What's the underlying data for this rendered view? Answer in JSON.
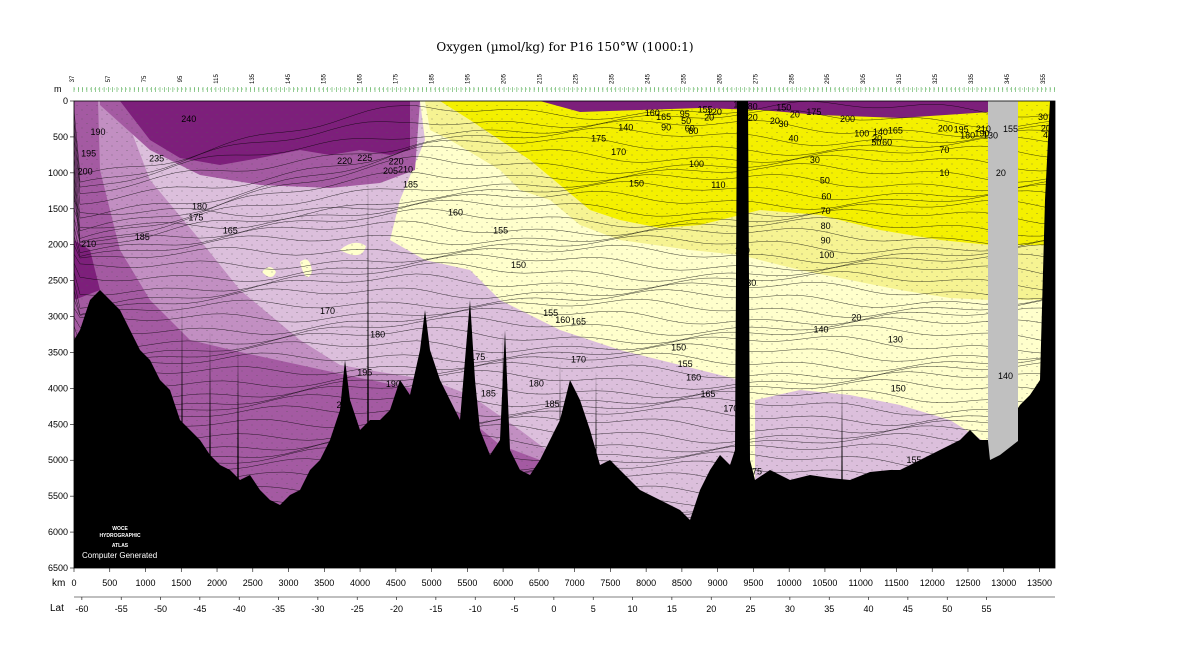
{
  "title": "Oxygen (µmol/kg) for P16 150°W (1000:1)",
  "depth_unit_label": "m",
  "distance_unit_label": "km",
  "latitude_axis_label": "Lat",
  "logo": {
    "line1": "WOCE",
    "line2": "HYDROGRAPHIC",
    "line3": "ATLAS",
    "caption": "Computer Generated"
  },
  "colors": {
    "purple_dark": "#7d1f7b",
    "purple_mid": "#a45aa2",
    "purple_light": "#c28fc2",
    "lavender": "#dcbfdc",
    "cream": "#ffffcc",
    "yellow_light": "#f6f392",
    "yellow": "#f4f000",
    "bottom": "#000000",
    "gap": "#c0c0c0"
  },
  "station_numbers": [
    "37",
    "46",
    "57",
    "65",
    "75",
    "85",
    "95",
    "105",
    "115",
    "125",
    "135",
    "140",
    "145",
    "150",
    "155",
    "160",
    "165",
    "170",
    "175",
    "180",
    "185",
    "190",
    "195",
    "200",
    "205",
    "210",
    "215",
    "220",
    "225",
    "230",
    "235",
    "240",
    "245",
    "250",
    "255",
    "260",
    "265",
    "270",
    "275",
    "280",
    "285",
    "290",
    "295",
    "300",
    "305",
    "310",
    "315",
    "320",
    "325",
    "330",
    "335",
    "340",
    "345",
    "350",
    "355"
  ],
  "chart_data": {
    "type": "heatmap",
    "title": "Oxygen (µmol/kg) for P16 150°W (1000:1)",
    "xlabel": "km",
    "ylabel": "m",
    "xlim": [
      0,
      13600
    ],
    "ylim": [
      0,
      6500
    ],
    "y_inverted": true,
    "x_ticks": [
      0,
      500,
      1000,
      1500,
      2000,
      2500,
      3000,
      3500,
      4000,
      4500,
      5000,
      5500,
      6000,
      6500,
      7000,
      7500,
      8000,
      8500,
      9000,
      9500,
      10000,
      10500,
      11000,
      11500,
      12000,
      12500,
      13000,
      13500
    ],
    "x_tick_labels": [
      "0",
      "500",
      "1000",
      "1500",
      "2000",
      "2500",
      "3000",
      "3500",
      "4000",
      "4500",
      "5000",
      "5500",
      "6000",
      "6500",
      "7000",
      "7500",
      "8000",
      "8500",
      "9000",
      "9500",
      "10000",
      "10500",
      "11000",
      "11500",
      "12000",
      "12500",
      "13000",
      "13500"
    ],
    "y_ticks": [
      0,
      500,
      1000,
      1500,
      2000,
      2500,
      3000,
      3500,
      4000,
      4500,
      5000,
      5500,
      6000,
      6500
    ],
    "y_tick_labels": [
      "0",
      "500",
      "1000",
      "1500",
      "2000",
      "2500",
      "3000",
      "3500",
      "4000",
      "4500",
      "5000",
      "5500",
      "6000",
      "6500"
    ],
    "lat_tick_labels": [
      "-60",
      "-55",
      "-50",
      "-45",
      "-40",
      "-35",
      "-30",
      "-25",
      "-20",
      "-15",
      "-10",
      "-5",
      "0",
      "5",
      "10",
      "15",
      "20",
      "25",
      "30",
      "35",
      "40",
      "45",
      "50",
      "55"
    ],
    "lat_tick_km": [
      110,
      660,
      1210,
      1760,
      2310,
      2860,
      3410,
      3960,
      4510,
      5060,
      5610,
      6160,
      6710,
      7260,
      7810,
      8360,
      8910,
      9460,
      10010,
      10560,
      11110,
      11660,
      12210,
      12760
    ],
    "color_bands": [
      {
        "name": "purple_dark",
        "range": [
          220,
          350
        ]
      },
      {
        "name": "purple_mid",
        "range": [
          190,
          220
        ]
      },
      {
        "name": "purple_light",
        "range": [
          170,
          190
        ]
      },
      {
        "name": "lavender",
        "range": [
          150,
          170
        ]
      },
      {
        "name": "cream",
        "range": [
          100,
          150
        ]
      },
      {
        "name": "yellow_light",
        "range": [
          50,
          100
        ]
      },
      {
        "name": "yellow",
        "range": [
          0,
          50
        ]
      }
    ],
    "contour_labels": [
      {
        "x": 1500,
        "y": 250,
        "text": "240"
      },
      {
        "x": 1050,
        "y": 800,
        "text": "235"
      },
      {
        "x": 230,
        "y": 430,
        "text": "190"
      },
      {
        "x": 100,
        "y": 730,
        "text": "195"
      },
      {
        "x": 50,
        "y": 980,
        "text": "200"
      },
      {
        "x": 1650,
        "y": 1470,
        "text": "180"
      },
      {
        "x": 1600,
        "y": 1620,
        "text": "175"
      },
      {
        "x": 100,
        "y": 1990,
        "text": "210"
      },
      {
        "x": 850,
        "y": 1890,
        "text": "185"
      },
      {
        "x": 2080,
        "y": 1800,
        "text": "165"
      },
      {
        "x": 3680,
        "y": 835,
        "text": "220"
      },
      {
        "x": 3960,
        "y": 790,
        "text": "225"
      },
      {
        "x": 4400,
        "y": 840,
        "text": "220"
      },
      {
        "x": 4320,
        "y": 975,
        "text": "205"
      },
      {
        "x": 4530,
        "y": 950,
        "text": "210"
      },
      {
        "x": 4600,
        "y": 1160,
        "text": "185"
      },
      {
        "x": 5230,
        "y": 1550,
        "text": "160"
      },
      {
        "x": 5860,
        "y": 1800,
        "text": "155"
      },
      {
        "x": 6110,
        "y": 2280,
        "text": "150"
      },
      {
        "x": 7230,
        "y": 520,
        "text": "175"
      },
      {
        "x": 7510,
        "y": 710,
        "text": "170"
      },
      {
        "x": 7760,
        "y": 1150,
        "text": "150"
      },
      {
        "x": 7610,
        "y": 370,
        "text": "140"
      },
      {
        "x": 8210,
        "y": 370,
        "text": "90"
      },
      {
        "x": 8590,
        "y": 420,
        "text": "80"
      },
      {
        "x": 7980,
        "y": 170,
        "text": "160"
      },
      {
        "x": 8140,
        "y": 220,
        "text": "165"
      },
      {
        "x": 8600,
        "y": 880,
        "text": "100"
      },
      {
        "x": 8910,
        "y": 1170,
        "text": "110"
      },
      {
        "x": 9240,
        "y": 2080,
        "text": "120"
      },
      {
        "x": 9330,
        "y": 2530,
        "text": "130"
      },
      {
        "x": 10340,
        "y": 3180,
        "text": "140"
      },
      {
        "x": 6950,
        "y": 3600,
        "text": "170"
      },
      {
        "x": 6560,
        "y": 2950,
        "text": "155"
      },
      {
        "x": 6730,
        "y": 3050,
        "text": "160"
      },
      {
        "x": 6950,
        "y": 3070,
        "text": "165"
      },
      {
        "x": 3440,
        "y": 2920,
        "text": "170"
      },
      {
        "x": 4140,
        "y": 3250,
        "text": "180"
      },
      {
        "x": 5540,
        "y": 3560,
        "text": "175"
      },
      {
        "x": 3960,
        "y": 3780,
        "text": "195"
      },
      {
        "x": 4360,
        "y": 3940,
        "text": "190"
      },
      {
        "x": 3670,
        "y": 4230,
        "text": "200"
      },
      {
        "x": 5690,
        "y": 4070,
        "text": "185"
      },
      {
        "x": 6360,
        "y": 3930,
        "text": "180"
      },
      {
        "x": 6580,
        "y": 4220,
        "text": "185"
      },
      {
        "x": 8350,
        "y": 3430,
        "text": "150"
      },
      {
        "x": 8440,
        "y": 3660,
        "text": "155"
      },
      {
        "x": 8560,
        "y": 3850,
        "text": "160"
      },
      {
        "x": 8760,
        "y": 4080,
        "text": "165"
      },
      {
        "x": 9080,
        "y": 4280,
        "text": "170"
      },
      {
        "x": 9410,
        "y": 5160,
        "text": "175"
      },
      {
        "x": 8470,
        "y": 180,
        "text": "95"
      },
      {
        "x": 8490,
        "y": 280,
        "text": "50"
      },
      {
        "x": 8540,
        "y": 380,
        "text": "60"
      },
      {
        "x": 8720,
        "y": 120,
        "text": "155"
      },
      {
        "x": 8850,
        "y": 150,
        "text": "120"
      },
      {
        "x": 8810,
        "y": 230,
        "text": "20"
      },
      {
        "x": 9220,
        "y": 50,
        "text": "180"
      },
      {
        "x": 9350,
        "y": 80,
        "text": "180"
      },
      {
        "x": 9420,
        "y": 230,
        "text": "20"
      },
      {
        "x": 9730,
        "y": 280,
        "text": "20"
      },
      {
        "x": 9820,
        "y": 90,
        "text": "150"
      },
      {
        "x": 9850,
        "y": 320,
        "text": "30"
      },
      {
        "x": 10010,
        "y": 190,
        "text": "20"
      },
      {
        "x": 9990,
        "y": 520,
        "text": "40"
      },
      {
        "x": 10240,
        "y": 150,
        "text": "175"
      },
      {
        "x": 10290,
        "y": 820,
        "text": "30"
      },
      {
        "x": 10430,
        "y": 1110,
        "text": "50"
      },
      {
        "x": 10450,
        "y": 1330,
        "text": "60"
      },
      {
        "x": 10440,
        "y": 1530,
        "text": "70"
      },
      {
        "x": 10440,
        "y": 1740,
        "text": "80"
      },
      {
        "x": 10440,
        "y": 1940,
        "text": "90"
      },
      {
        "x": 10420,
        "y": 2140,
        "text": "100"
      },
      {
        "x": 10710,
        "y": 250,
        "text": "200"
      },
      {
        "x": 10910,
        "y": 450,
        "text": "100"
      },
      {
        "x": 11170,
        "y": 430,
        "text": "140"
      },
      {
        "x": 11160,
        "y": 520,
        "text": "30"
      },
      {
        "x": 11150,
        "y": 580,
        "text": "50"
      },
      {
        "x": 11300,
        "y": 580,
        "text": "60"
      },
      {
        "x": 11380,
        "y": 410,
        "text": "165"
      },
      {
        "x": 10870,
        "y": 3010,
        "text": "20"
      },
      {
        "x": 11380,
        "y": 3320,
        "text": "130"
      },
      {
        "x": 11420,
        "y": 4000,
        "text": "150"
      },
      {
        "x": 11640,
        "y": 5000,
        "text": "155"
      },
      {
        "x": 12080,
        "y": 380,
        "text": "200"
      },
      {
        "x": 12300,
        "y": 400,
        "text": "195"
      },
      {
        "x": 12390,
        "y": 480,
        "text": "180"
      },
      {
        "x": 12610,
        "y": 390,
        "text": "210"
      },
      {
        "x": 12590,
        "y": 450,
        "text": "190"
      },
      {
        "x": 12710,
        "y": 480,
        "text": "130"
      },
      {
        "x": 12990,
        "y": 390,
        "text": "155"
      },
      {
        "x": 12100,
        "y": 680,
        "text": "70"
      },
      {
        "x": 12100,
        "y": 1000,
        "text": "10"
      },
      {
        "x": 12890,
        "y": 1000,
        "text": "20"
      },
      {
        "x": 12920,
        "y": 3830,
        "text": "140"
      },
      {
        "x": 13480,
        "y": 220,
        "text": "30"
      },
      {
        "x": 13520,
        "y": 380,
        "text": "20"
      },
      {
        "x": 13550,
        "y": 470,
        "text": "4"
      }
    ]
  }
}
